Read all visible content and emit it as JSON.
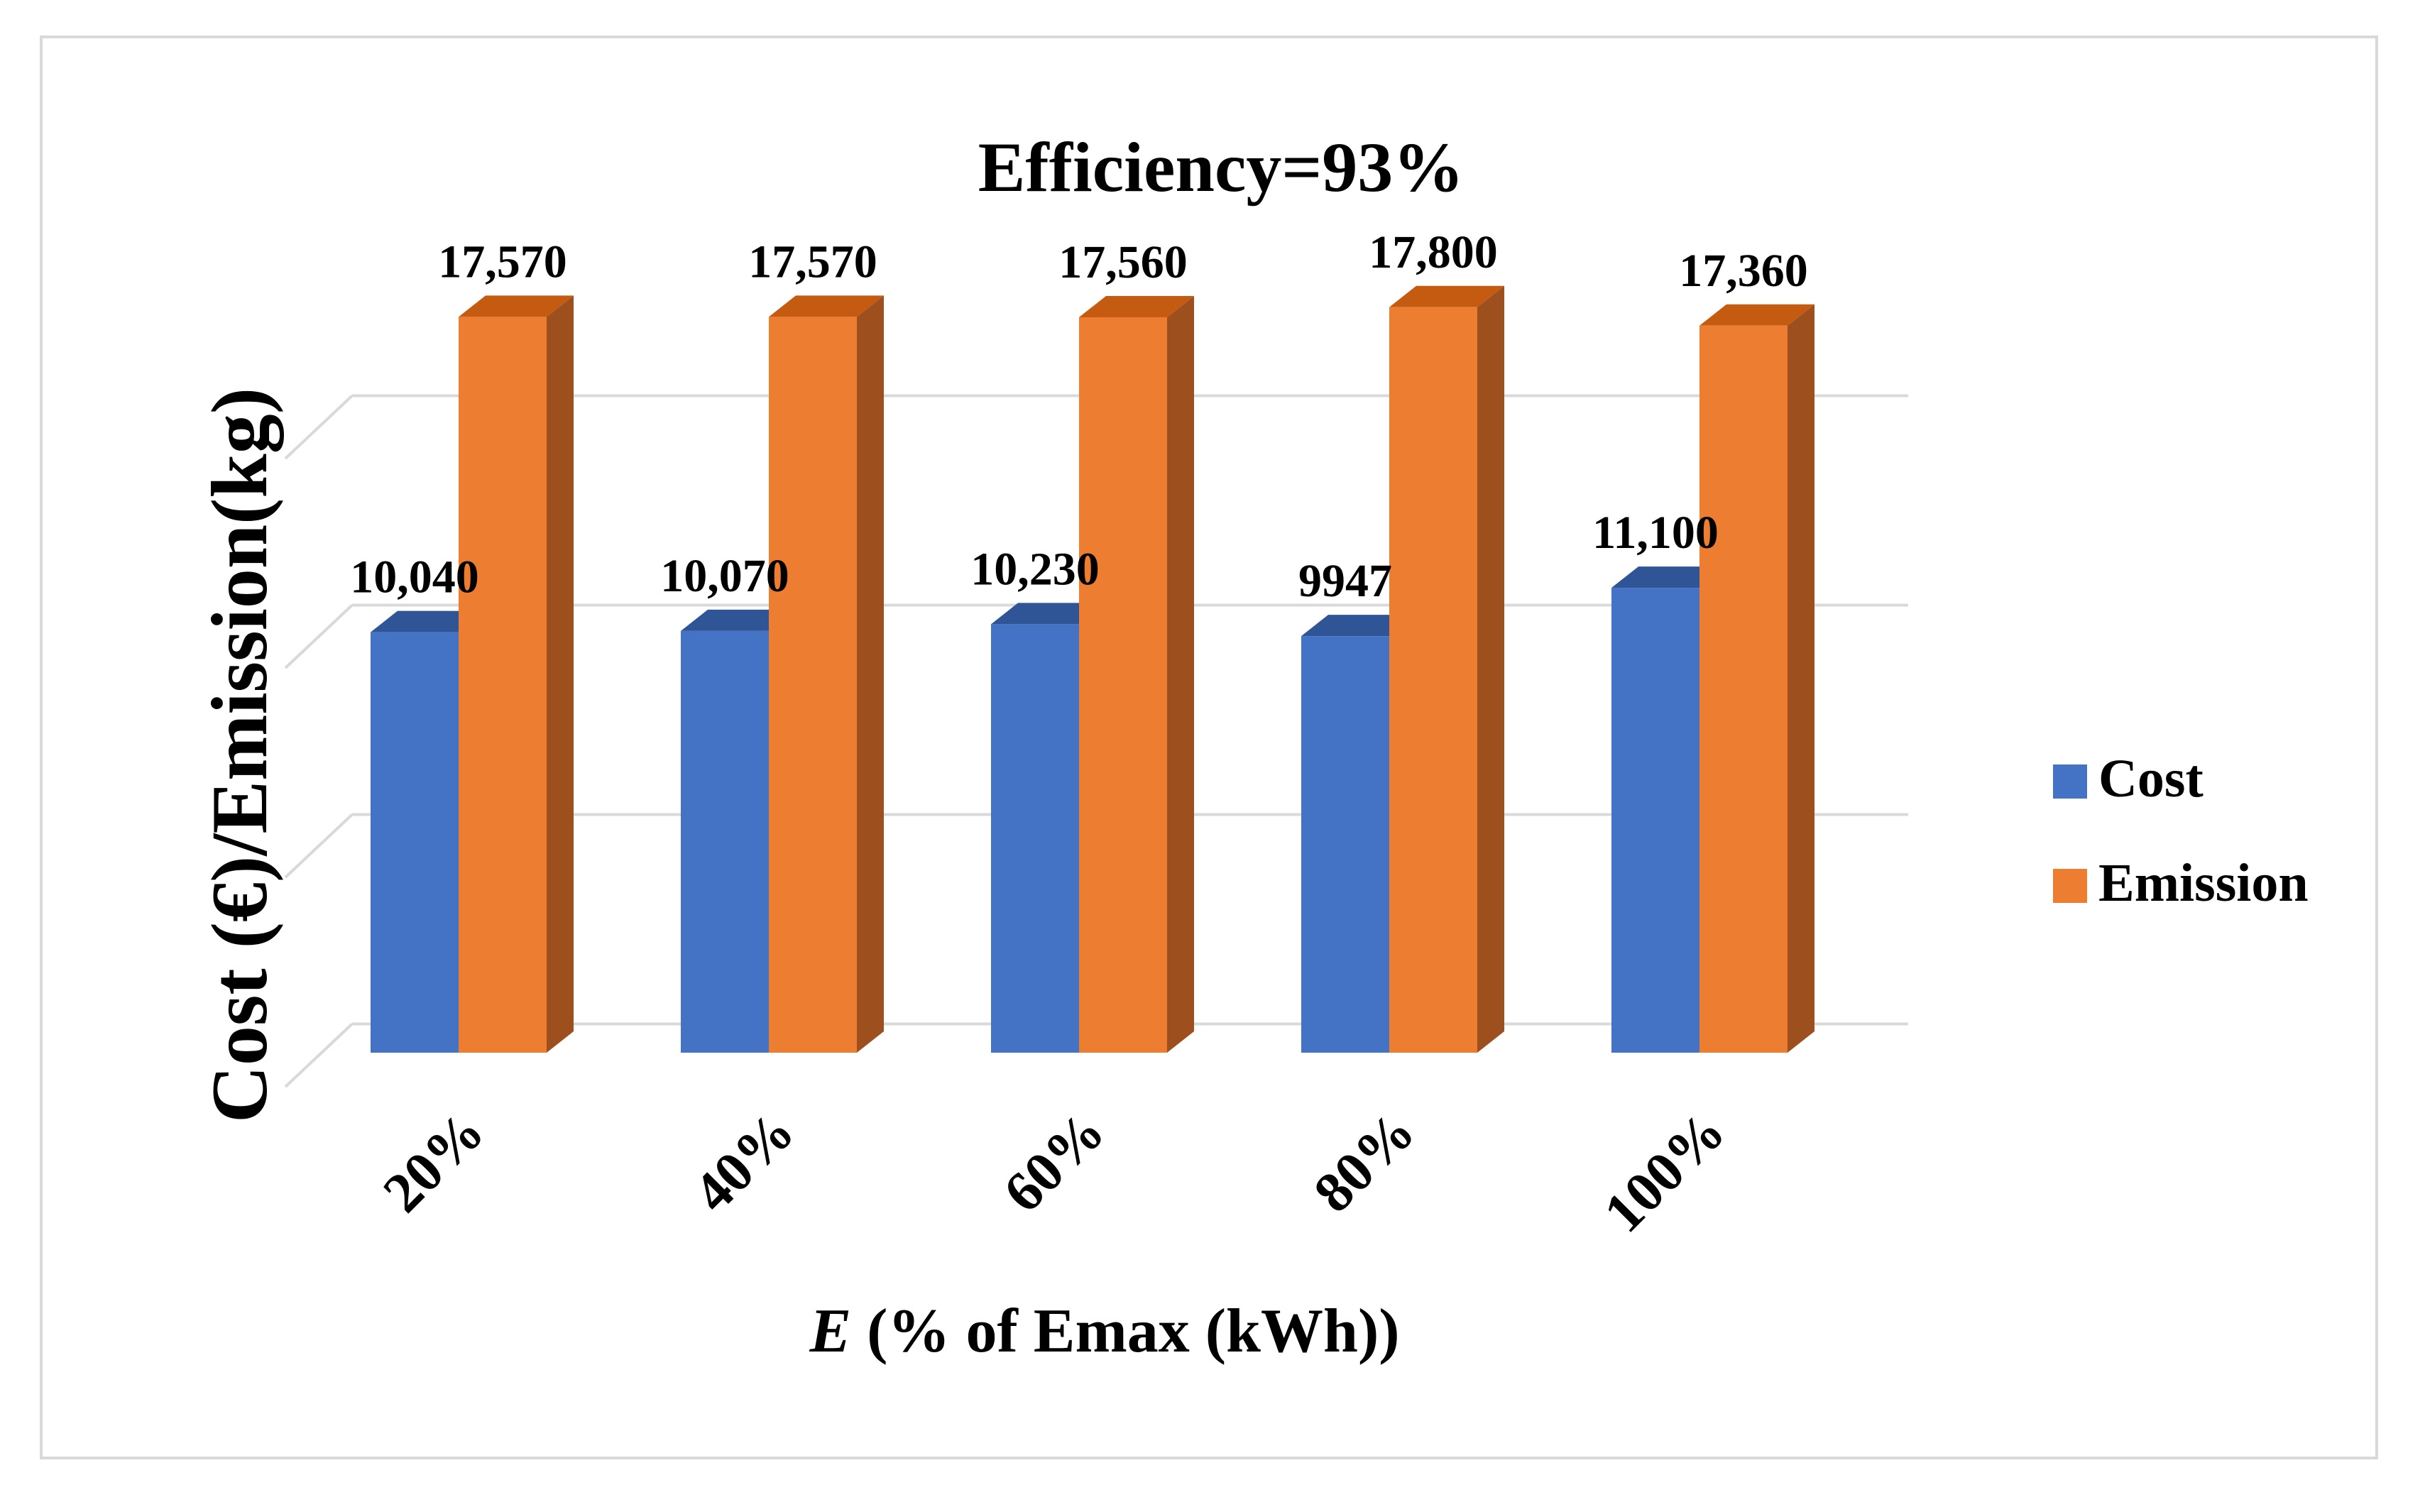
{
  "chart_data": {
    "type": "bar",
    "title": "Efficiency=93%",
    "xlabel_var": "E",
    "xlabel_rest": " (% of Emax (kWh))",
    "ylabel": "Cost (€)/Emission(kg)",
    "categories": [
      "20%",
      "40%",
      "60%",
      "80%",
      "100%"
    ],
    "series": [
      {
        "name": "Cost",
        "values": [
          10040,
          10070,
          10230,
          9947,
          11100
        ],
        "labels": [
          "10,040",
          "10,070",
          "10,230",
          "9947",
          "11,100"
        ],
        "color": "#4472c4",
        "top_color": "#2f5597"
      },
      {
        "name": "Emission",
        "values": [
          17570,
          17570,
          17560,
          17800,
          17360
        ],
        "labels": [
          "17,570",
          "17,570",
          "17,560",
          "17,800",
          "17,360"
        ],
        "color": "#ed7d31",
        "top_color": "#c55a11",
        "side_color": "#9e4f1e"
      }
    ],
    "ylim": [
      0,
      20000
    ],
    "y_gridlines": [
      5000,
      10000,
      15000
    ],
    "grid": true,
    "legend_position": "right",
    "style": "3d-clustered-column"
  }
}
